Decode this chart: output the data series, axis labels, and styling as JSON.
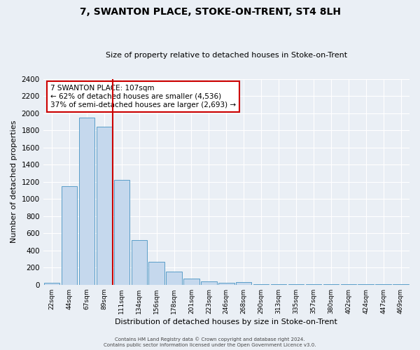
{
  "title": "7, SWANTON PLACE, STOKE-ON-TRENT, ST4 8LH",
  "subtitle": "Size of property relative to detached houses in Stoke-on-Trent",
  "xlabel": "Distribution of detached houses by size in Stoke-on-Trent",
  "ylabel": "Number of detached properties",
  "categories": [
    "22sqm",
    "44sqm",
    "67sqm",
    "89sqm",
    "111sqm",
    "134sqm",
    "156sqm",
    "178sqm",
    "201sqm",
    "223sqm",
    "246sqm",
    "268sqm",
    "290sqm",
    "313sqm",
    "335sqm",
    "357sqm",
    "380sqm",
    "402sqm",
    "424sqm",
    "447sqm",
    "469sqm"
  ],
  "values": [
    25,
    1150,
    1950,
    1840,
    1220,
    520,
    265,
    150,
    75,
    40,
    25,
    35,
    10,
    5,
    5,
    5,
    5,
    5,
    5,
    5,
    5
  ],
  "bar_color": "#c5d8ed",
  "bar_edge_color": "#5a9dc8",
  "vline_color": "#cc0000",
  "annotation_line1": "7 SWANTON PLACE: 107sqm",
  "annotation_line2": "← 62% of detached houses are smaller (4,536)",
  "annotation_line3": "37% of semi-detached houses are larger (2,693) →",
  "annotation_box_color": "#cc0000",
  "ylim": [
    0,
    2400
  ],
  "yticks": [
    0,
    200,
    400,
    600,
    800,
    1000,
    1200,
    1400,
    1600,
    1800,
    2000,
    2200,
    2400
  ],
  "bg_color": "#eaeff5",
  "grid_color": "#ffffff",
  "footer_line1": "Contains HM Land Registry data © Crown copyright and database right 2024.",
  "footer_line2": "Contains public sector information licensed under the Open Government Licence v3.0."
}
